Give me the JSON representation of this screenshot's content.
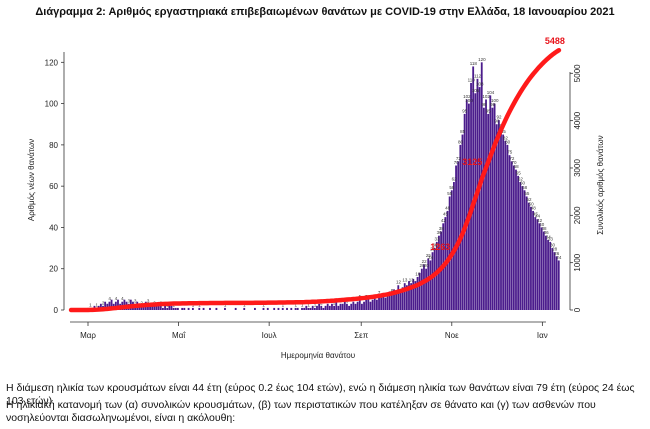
{
  "chart_data": {
    "type": "bar",
    "title": "Διάγραμμα 2: Αριθμός εργαστηριακά επιβεβαιωμένων θανάτων με COVID-19 στην Ελλάδα, 18 Ιανουαρίου 2021",
    "xlabel": "Ημερομηνία θανάτου",
    "ylabel": "Αριθμός νέων θανάτων",
    "y2label": "Συνολικός αριθμός θανάτων",
    "x_ticks": [
      "Μαρ",
      "Μαΐ",
      "Ιουλ",
      "Σεπ",
      "Νοε",
      "Ιαν"
    ],
    "y_ticks": [
      0,
      20,
      40,
      60,
      80,
      100,
      120
    ],
    "y2_ticks": [
      0,
      1000,
      2000,
      3000,
      4000,
      5000
    ],
    "ylim": [
      0,
      125
    ],
    "y2lim": [
      0,
      5450
    ],
    "colors": {
      "bars": "#4b1c8c",
      "cumulative": "#ff1a1a"
    },
    "series": [
      {
        "kind": "bar",
        "x_start_label": "Μαρ",
        "values": [
          0,
          0,
          0,
          0,
          0,
          0,
          0,
          0,
          1,
          1,
          1,
          2,
          1,
          2,
          3,
          2,
          4,
          3,
          4,
          5,
          3,
          4,
          5,
          3,
          4,
          5,
          4,
          3,
          5,
          4,
          3,
          4,
          3,
          2,
          3,
          4,
          3,
          2,
          3,
          2,
          2,
          3,
          2,
          1,
          2,
          1,
          2,
          2,
          1,
          1,
          1,
          0,
          1,
          1,
          0,
          1,
          0,
          1,
          0,
          0,
          1,
          0,
          1,
          0,
          0,
          1,
          0,
          0,
          1,
          0,
          0,
          0,
          1,
          0,
          0,
          0,
          0,
          1,
          0,
          0,
          0,
          1,
          0,
          0,
          0,
          0,
          1,
          0,
          0,
          0,
          1,
          0,
          1,
          0,
          0,
          1,
          0,
          1,
          0,
          1,
          0,
          1,
          0,
          1,
          0,
          1,
          1,
          0,
          1,
          1,
          2,
          1,
          1,
          2,
          1,
          2,
          3,
          2,
          1,
          2,
          3,
          2,
          3,
          2,
          4,
          2,
          3,
          3,
          4,
          3,
          2,
          3,
          4,
          3,
          4,
          5,
          3,
          4,
          5,
          6,
          4,
          5,
          6,
          5,
          7,
          6,
          8,
          6,
          7,
          9,
          8,
          10,
          9,
          12,
          10,
          11,
          13,
          12,
          14,
          13,
          15,
          14,
          16,
          18,
          20,
          22,
          20,
          25,
          24,
          28,
          30,
          33,
          36,
          38,
          42,
          45,
          48,
          55,
          58,
          62,
          70,
          72,
          80,
          85,
          95,
          102,
          100,
          110,
          118,
          105,
          112,
          108,
          120,
          98,
          102,
          95,
          104,
          98,
          100,
          90,
          92,
          88,
          85,
          82,
          80,
          75,
          72,
          70,
          68,
          65,
          62,
          60,
          58,
          55,
          52,
          50,
          48,
          45,
          44,
          42,
          40,
          38,
          36,
          34,
          33,
          30,
          28,
          26,
          24
        ],
        "peak_labels": [
          118,
          120,
          110,
          104
        ]
      },
      {
        "kind": "line",
        "values_note": "cumulative",
        "labels": [
          "1263",
          "3125",
          "5488"
        ]
      }
    ]
  },
  "page_text": {
    "para1": "Η διάμεση ηλικία των κρουσμάτων είναι 44 έτη (εύρος 0.2 έως 104 ετών), ενώ η διάμεση ηλικία των θανάτων είναι 79 έτη (εύρος 24 έως 103 ετών).",
    "para2": "Η ηλικιακή κατανομή των (α) συνολικών κρουσμάτων, (β) των περιστατικών που κατέληξαν σε θάνατο και (γ) των ασθενών που νοσηλεύονται διασωληνωμένοι, είναι η ακόλουθη:"
  }
}
